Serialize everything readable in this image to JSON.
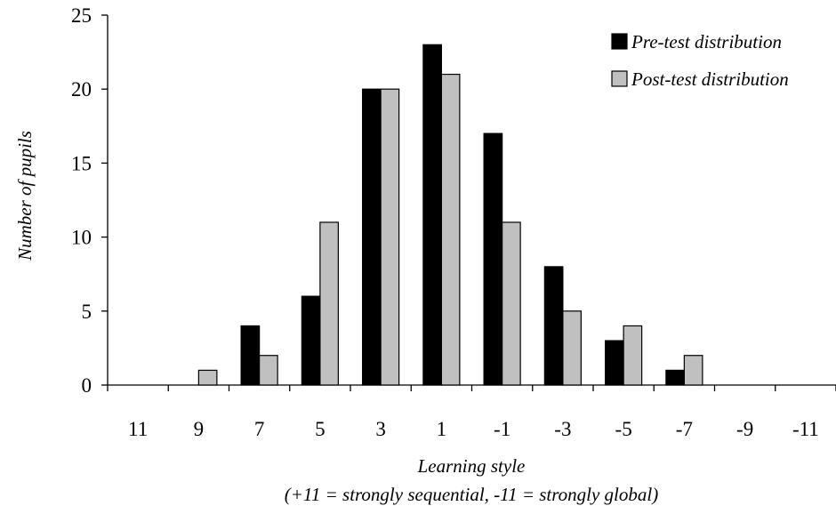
{
  "chart_data": {
    "type": "bar",
    "title": "",
    "xlabel": "Learning style",
    "xlabel_note": "(+11 = strongly sequential, -11 = strongly global)",
    "ylabel": "Number of pupils",
    "ylim": [
      0,
      25
    ],
    "yticks": [
      "0",
      "5",
      "10",
      "15",
      "20",
      "25"
    ],
    "categories": [
      "11",
      "9",
      "7",
      "5",
      "3",
      "1",
      "-1",
      "-3",
      "-5",
      "-7",
      "-9",
      "-11"
    ],
    "series": [
      {
        "name": "Pre-test distribution",
        "color": "#000000",
        "values": [
          0,
          0,
          4,
          6,
          20,
          23,
          17,
          8,
          3,
          1,
          0,
          0
        ]
      },
      {
        "name": "Post-test distribution",
        "color": "#c0c0c0",
        "values": [
          0,
          1,
          2,
          11,
          20,
          21,
          11,
          5,
          4,
          2,
          0,
          0
        ]
      }
    ],
    "legend": "top-right",
    "grid": false
  }
}
